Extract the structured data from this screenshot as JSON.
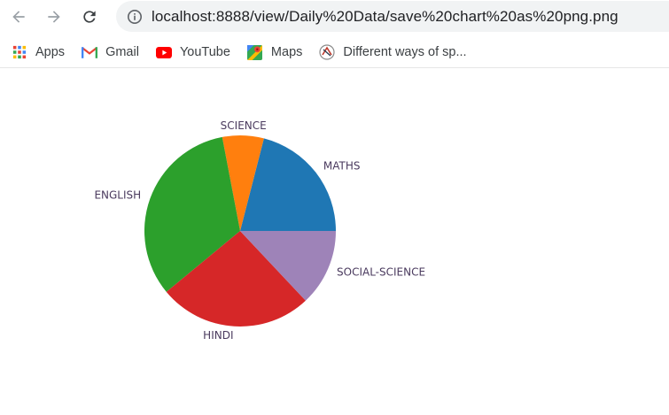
{
  "browser": {
    "url": "localhost:8888/view/Daily%20Data/save%20chart%20as%20png.png",
    "bookmarks": [
      {
        "label": "Apps",
        "icon": "apps-grid-icon"
      },
      {
        "label": "Gmail",
        "icon": "gmail-icon"
      },
      {
        "label": "YouTube",
        "icon": "youtube-icon"
      },
      {
        "label": "Maps",
        "icon": "maps-icon"
      },
      {
        "label": "Different ways of sp...",
        "icon": "site-favicon-icon"
      }
    ]
  },
  "chart_data": {
    "type": "pie",
    "categories": [
      "MATHS",
      "SCIENCE",
      "ENGLISH",
      "HINDI",
      "SOCIAL-SCIENCE"
    ],
    "values": [
      21,
      7,
      33,
      26,
      13
    ],
    "colors": [
      "#1f77b4",
      "#ff7f0e",
      "#2ca02c",
      "#d62728",
      "#9e83b8"
    ],
    "start_angle": 0,
    "direction": "counterclockwise",
    "legend": "none"
  }
}
